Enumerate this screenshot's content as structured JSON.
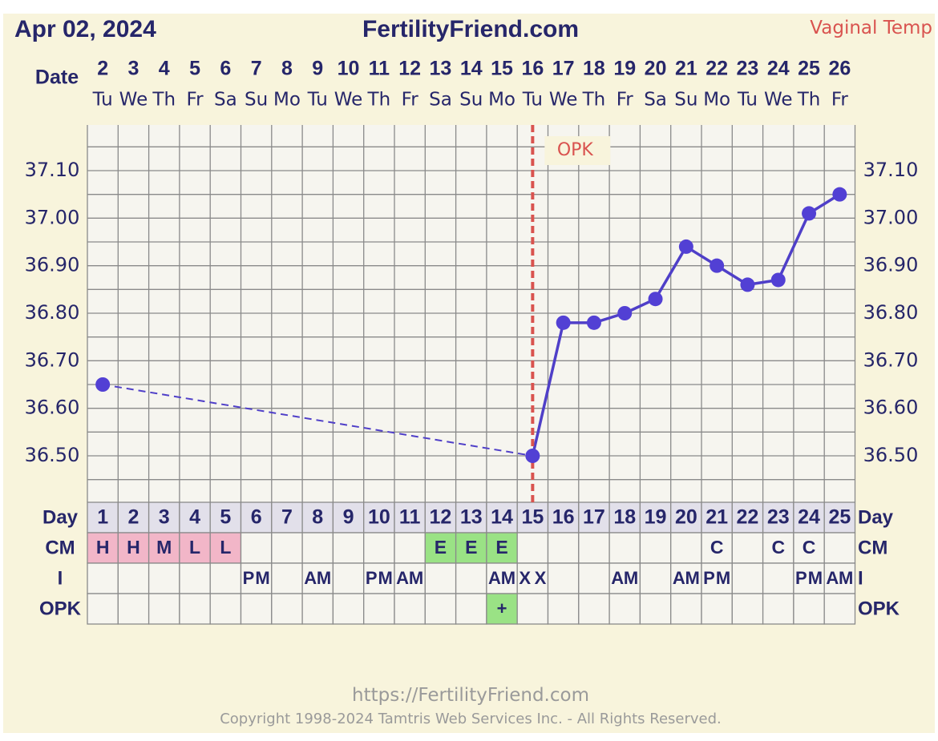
{
  "header": {
    "date": "Apr 02, 2024",
    "site": "FertilityFriend.com",
    "temp_type": "Vaginal Temp"
  },
  "footer": {
    "url": "https://FertilityFriend.com",
    "copyright": "Copyright 1998-2024 Tamtris Web Services Inc. - All Rights Reserved."
  },
  "colors": {
    "background": "#f8f4dc",
    "plot": "#f6f5ef",
    "grid": "#8a8a8a",
    "text": "#26266a",
    "line": "#4f3fc8",
    "marker": "#5240d4",
    "opk_line": "#d9534f",
    "cm_pink": "#f2b6c8",
    "cm_green": "#9ae285",
    "day_row": "#e2e0ea"
  },
  "row_labels": {
    "date": "Date",
    "day": "Day",
    "cm": "CM",
    "intercourse": "I",
    "opk": "OPK"
  },
  "chart_data": {
    "type": "line",
    "title": "",
    "ylabel": "",
    "xlabel": "",
    "ylim": [
      36.5,
      37.1
    ],
    "grid": true,
    "dates": [
      "2",
      "3",
      "4",
      "5",
      "6",
      "7",
      "8",
      "9",
      "10",
      "11",
      "12",
      "13",
      "14",
      "15",
      "16",
      "17",
      "18",
      "19",
      "20",
      "21",
      "22",
      "23",
      "24",
      "25",
      "26"
    ],
    "weekdays": [
      "Tu",
      "We",
      "Th",
      "Fr",
      "Sa",
      "Su",
      "Mo",
      "Tu",
      "We",
      "Th",
      "Fr",
      "Sa",
      "Su",
      "Mo",
      "Tu",
      "We",
      "Th",
      "Fr",
      "Sa",
      "Su",
      "Mo",
      "Tu",
      "We",
      "Th",
      "Fr"
    ],
    "cycle_days": [
      "1",
      "2",
      "3",
      "4",
      "5",
      "6",
      "7",
      "8",
      "9",
      "10",
      "11",
      "12",
      "13",
      "14",
      "15",
      "16",
      "17",
      "18",
      "19",
      "20",
      "21",
      "22",
      "23",
      "24",
      "25"
    ],
    "y_ticks": [
      "36.50",
      "36.60",
      "36.70",
      "36.80",
      "36.90",
      "37.00",
      "37.10"
    ],
    "temperatures": [
      36.65,
      null,
      null,
      null,
      null,
      null,
      null,
      null,
      null,
      null,
      null,
      null,
      null,
      null,
      36.5,
      36.78,
      36.78,
      36.8,
      36.83,
      36.94,
      36.9,
      36.86,
      36.87,
      37.01,
      37.05
    ],
    "opk_marker": {
      "day": "15",
      "label": "OPK"
    },
    "cervical_mucus": [
      "H",
      "H",
      "M",
      "L",
      "L",
      "",
      "",
      "",
      "",
      "",
      "",
      "E",
      "E",
      "E",
      "",
      "",
      "",
      "",
      "",
      "",
      "C",
      "",
      "C",
      "C",
      ""
    ],
    "intercourse": [
      "",
      "",
      "",
      "",
      "",
      "PM",
      "",
      "AM",
      "",
      "PM",
      "AM",
      "",
      "",
      "AM",
      "XX",
      "",
      "",
      "AM",
      "",
      "AM",
      "PM",
      "",
      "",
      "PM",
      "AM"
    ],
    "opk": [
      "",
      "",
      "",
      "",
      "",
      "",
      "",
      "",
      "",
      "",
      "",
      "",
      "",
      "+",
      "",
      "",
      "",
      "",
      "",
      "",
      "",
      "",
      "",
      "",
      ""
    ]
  }
}
